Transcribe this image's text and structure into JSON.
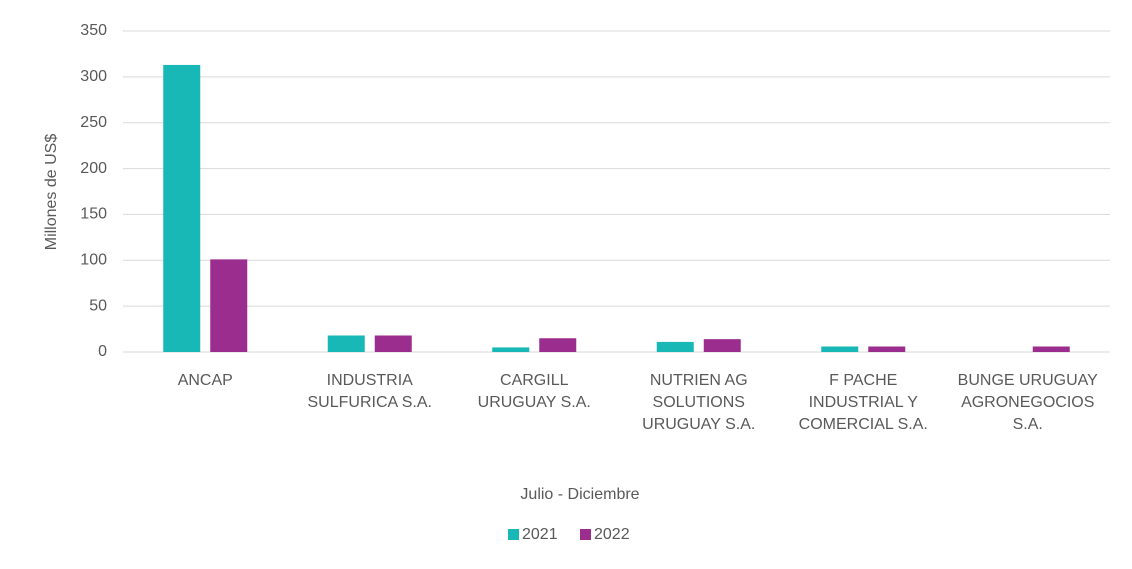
{
  "chart_data": {
    "type": "bar",
    "categories": [
      "ANCAP",
      "INDUSTRIA\nSULFURICA S.A.",
      "CARGILL\nURUGUAY S.A.",
      "NUTRIEN AG\nSOLUTIONS\nURUGUAY S.A.",
      "F PACHE\nINDUSTRIAL Y\nCOMERCIAL S.A.",
      "BUNGE URUGUAY\nAGRONEGOCIOS\nS.A."
    ],
    "series": [
      {
        "name": "2021",
        "color": "#17b8b6",
        "values": [
          313,
          18,
          5,
          11,
          6,
          0
        ]
      },
      {
        "name": "2022",
        "color": "#9b2d8e",
        "values": [
          101,
          18,
          15,
          14,
          6,
          6
        ]
      }
    ],
    "ylim": [
      0,
      350
    ],
    "yticks": [
      0,
      50,
      100,
      150,
      200,
      250,
      300,
      350
    ],
    "grid": true,
    "y_label": "Millones de US$",
    "x_label": "Julio - Diciembre",
    "legend": "bottom"
  }
}
